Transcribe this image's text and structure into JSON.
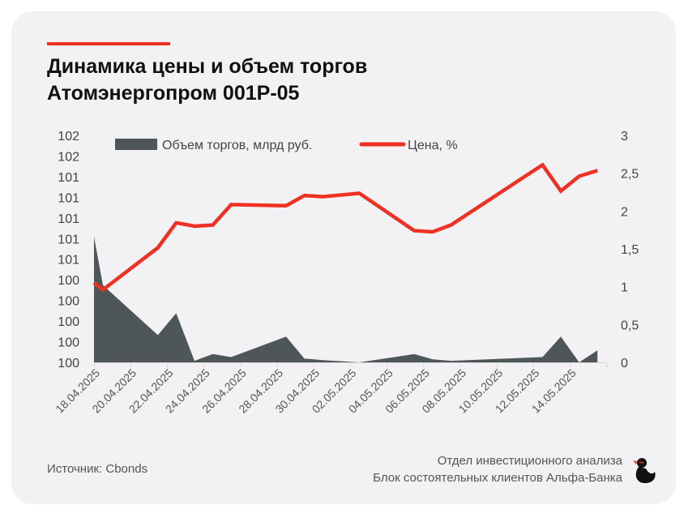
{
  "title_line1": "Динамика цены и объем торгов",
  "title_line2": "Атомэнергопром 001Р-05",
  "source": "Источник: Cbonds",
  "footer_line1": "Отдел инвестиционного анализа",
  "footer_line2": "Блок состоятельных клиентов Альфа-Банка",
  "colors": {
    "accent": "#ef3124",
    "volume": "#4f5657",
    "price": "#ef3124",
    "background": "#f2f2f4"
  },
  "chart_data": {
    "type": "line+area",
    "legend": [
      "Объем торгов, млрд руб.",
      "Цена, %"
    ],
    "legend_placement": "top",
    "left_axis": {
      "series": "Цена, %",
      "ylim": [
        100,
        102
      ],
      "tick_labels": [
        "100",
        "100",
        "100",
        "100",
        "100",
        "101",
        "101",
        "101",
        "101",
        "101",
        "102",
        "102"
      ]
    },
    "right_axis": {
      "series": "Объем торгов, млрд руб.",
      "ylim": [
        0,
        3
      ],
      "tick_labels": [
        "0",
        "0,5",
        "1",
        "1,5",
        "2",
        "2,5",
        "3"
      ]
    },
    "x_tick_labels": [
      "18.04.2025",
      "20.04.2025",
      "22.04.2025",
      "24.04.2025",
      "26.04.2025",
      "28.04.2025",
      "30.04.2025",
      "02.05.2025",
      "04.05.2025",
      "06.05.2025",
      "08.05.2025",
      "10.05.2025",
      "12.05.2025",
      "14.05.2025"
    ],
    "x_days": [
      18,
      19,
      22,
      23,
      24,
      25,
      26,
      29,
      30,
      31,
      33,
      36,
      37,
      38,
      43,
      44,
      45,
      46
    ],
    "dates": [
      "18.04",
      "19.04",
      "22.04",
      "23.04",
      "24.04",
      "25.04",
      "26.04",
      "29.04",
      "30.04",
      "01.05",
      "03.05",
      "06.05",
      "07.05",
      "08.05",
      "13.05",
      "14.05",
      "15.05",
      "16.05"
    ],
    "series": [
      {
        "name": "Цена, %",
        "axis": "left",
        "values": [
          100.7,
          100.64,
          101.01,
          101.23,
          101.2,
          101.21,
          101.39,
          101.38,
          101.47,
          101.46,
          101.49,
          101.16,
          101.15,
          101.21,
          101.74,
          101.51,
          101.64,
          101.69
        ]
      },
      {
        "name": "Объем торгов, млрд руб.",
        "axis": "right",
        "values": [
          1.66,
          1.02,
          0.36,
          0.65,
          0.02,
          0.11,
          0.07,
          0.34,
          0.05,
          0.03,
          0.0,
          0.11,
          0.04,
          0.02,
          0.07,
          0.34,
          0.0,
          0.16
        ]
      }
    ]
  }
}
